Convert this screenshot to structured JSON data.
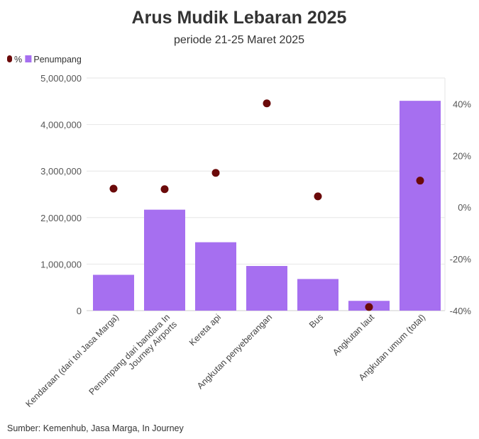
{
  "chart_data": {
    "type": "bar",
    "title": "Arus Mudik Lebaran 2025",
    "subtitle": "periode 21-25 Maret 2025",
    "source": "Sumber: Kemenhub, Jasa Marga, In Journey",
    "legend": {
      "placement": "top-left",
      "entries": [
        {
          "label": "%",
          "color": "#6b0a0a",
          "shape": "dot"
        },
        {
          "label": "Penumpang",
          "color": "#a66ff0",
          "shape": "square"
        }
      ]
    },
    "categories": [
      "Kendaraan (dari tol Jasa Marga)",
      "Penumpang dari bandara In Journey Airports",
      "Kereta api",
      "Angkutan penyeberangan",
      "Bus",
      "Angkutan laut",
      "Angkutan umum (total)"
    ],
    "category_lines": [
      [
        "Kendaraan (dari tol Jasa Marga)"
      ],
      [
        "Penumpang dari bandara In",
        "Journey Airports"
      ],
      [
        "Kereta api"
      ],
      [
        "Angkutan penyeberangan"
      ],
      [
        "Bus"
      ],
      [
        "Angkutan laut"
      ],
      [
        "Angkutan umum (total)"
      ]
    ],
    "series": [
      {
        "name": "Penumpang",
        "type": "bar",
        "axis": "left",
        "color": "#a66ff0",
        "values": [
          770000,
          2170000,
          1470000,
          960000,
          680000,
          210000,
          4510000
        ]
      },
      {
        "name": "%",
        "type": "scatter",
        "axis": "right",
        "color": "#6b0a0a",
        "values": [
          7.2,
          7.0,
          13.3,
          40.2,
          4.2,
          -38.6,
          10.3
        ]
      }
    ],
    "y_left": {
      "lim": [
        0,
        5000000
      ],
      "ticks": [
        0,
        1000000,
        2000000,
        3000000,
        4000000,
        5000000
      ],
      "tick_labels": [
        "0",
        "1,000,000",
        "2,000,000",
        "3,000,000",
        "4,000,000",
        "5,000,000"
      ]
    },
    "y_right": {
      "lim": [
        -40,
        50
      ],
      "ticks": [
        -40,
        -20,
        0,
        20,
        40
      ],
      "tick_labels": [
        "-40%",
        "-20%",
        "0%",
        "20%",
        "40%"
      ]
    },
    "grid": true
  }
}
